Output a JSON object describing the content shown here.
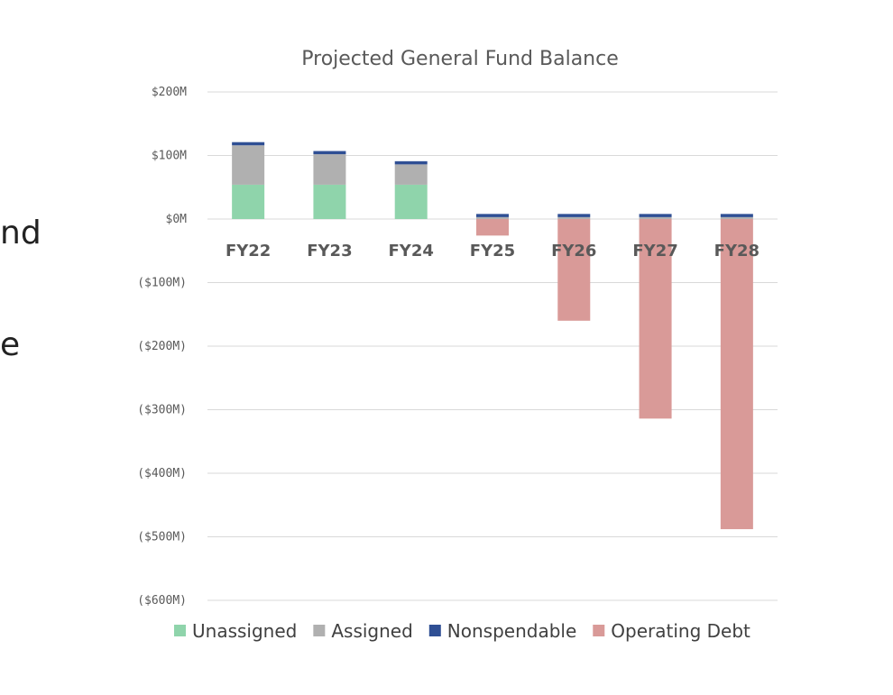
{
  "side_text": [
    "nd",
    "e"
  ],
  "chart_data": {
    "type": "bar",
    "stacked": true,
    "title": "Projected General Fund Balance",
    "categories": [
      "FY22",
      "FY23",
      "FY24",
      "FY25",
      "FY26",
      "FY27",
      "FY28"
    ],
    "y_tick_labels": [
      "$200M",
      "$100M",
      "$0M",
      "($100M)",
      "($200M)",
      "($300M)",
      "($400M)",
      "($500M)",
      "($600M)"
    ],
    "ylim": [
      -600,
      200
    ],
    "grid": true,
    "legend_position": "bottom",
    "series": [
      {
        "name": "Unassigned",
        "color": "#8fd4ab",
        "values": [
          54,
          54,
          54,
          0,
          0,
          0,
          0
        ]
      },
      {
        "name": "Assigned",
        "color": "#b0b0b0",
        "values": [
          62,
          48,
          32,
          3,
          3,
          3,
          3
        ]
      },
      {
        "name": "Nonspendable",
        "color": "#2f4f94",
        "values": [
          5,
          5,
          5,
          5,
          5,
          5,
          5
        ]
      },
      {
        "name": "Operating Debt",
        "color": "#d99a98",
        "values": [
          0,
          0,
          0,
          -26,
          -160,
          -314,
          -488
        ]
      }
    ]
  }
}
